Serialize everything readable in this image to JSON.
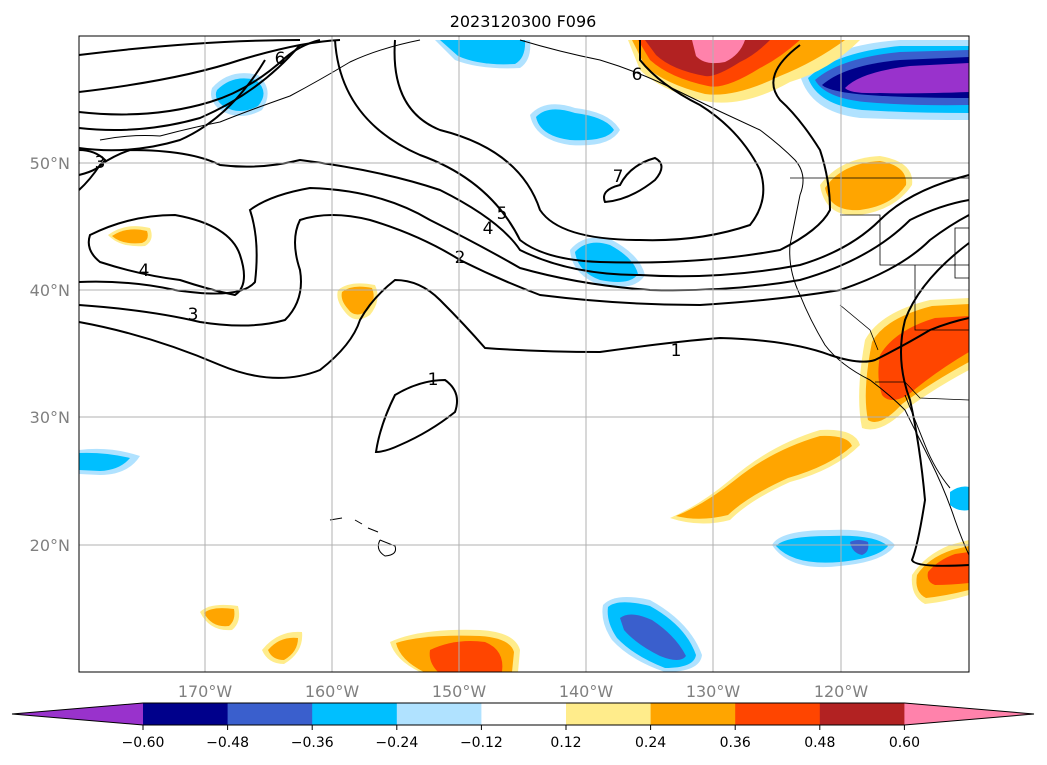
{
  "title": "2023120300 F096",
  "lat_labels": [
    "50°N",
    "40°N",
    "30°N",
    "20°N"
  ],
  "lon_labels": [
    "170°W",
    "160°W",
    "150°W",
    "140°W",
    "130°W",
    "120°W"
  ],
  "colorbar": {
    "ticks": [
      "−0.60",
      "−0.48",
      "−0.36",
      "−0.24",
      "−0.12",
      "0.12",
      "0.24",
      "0.36",
      "0.48",
      "0.60"
    ],
    "colors": [
      "#9932cc",
      "#00008b",
      "#3a5fcd",
      "#00bfff",
      "#b0e2ff",
      "#ffffff",
      "#ffec8b",
      "#ffa500",
      "#ff4500",
      "#b22222",
      "#ff82ab"
    ]
  },
  "contour_labels": [
    "1",
    "1",
    "2",
    "3",
    "3",
    "4",
    "4",
    "5",
    "6",
    "6",
    "7"
  ]
}
